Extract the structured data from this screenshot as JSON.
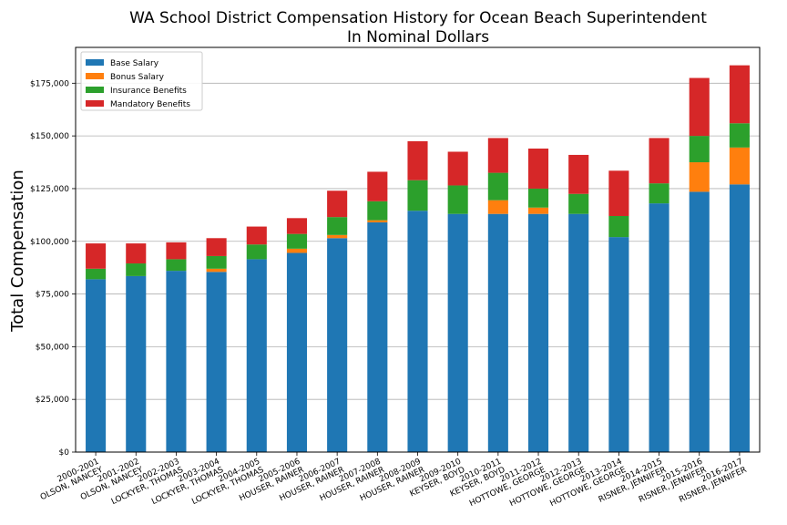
{
  "chart_data": {
    "type": "bar",
    "stacked": true,
    "title": "WA School District Compensation History for Ocean Beach Superintendent",
    "subtitle": "In Nominal Dollars",
    "xlabel": "",
    "ylabel": "Total Compensation",
    "ylim": [
      0,
      192000
    ],
    "yticks": [
      0,
      25000,
      50000,
      75000,
      100000,
      125000,
      150000,
      175000
    ],
    "ytick_labels": [
      "$0",
      "$25,000",
      "$50,000",
      "$75,000",
      "$100,000",
      "$125,000",
      "$150,000",
      "$175,000"
    ],
    "grid": "horizontal",
    "legend_position": "top-left",
    "categories": [
      [
        "2000-2001",
        "OLSON, NANCEY"
      ],
      [
        "2001-2002",
        "OLSON, NANCEY"
      ],
      [
        "2002-2003",
        "LOCKYER, THOMAS"
      ],
      [
        "2003-2004",
        "LOCKYER, THOMAS"
      ],
      [
        "2004-2005",
        "LOCKYER, THOMAS"
      ],
      [
        "2005-2006",
        "HOUSER, RAINER"
      ],
      [
        "2006-2007",
        "HOUSER, RAINER"
      ],
      [
        "2007-2008",
        "HOUSER, RAINER"
      ],
      [
        "2008-2009",
        "HOUSER, RAINER"
      ],
      [
        "2009-2010",
        "KEYSER, BOYD"
      ],
      [
        "2010-2011",
        "KEYSER, BOYD"
      ],
      [
        "2011-2012",
        "HOTTOWE, GEORGE"
      ],
      [
        "2012-2013",
        "HOTTOWE, GEORGE"
      ],
      [
        "2013-2014",
        "HOTTOWE, GEORGE"
      ],
      [
        "2014-2015",
        "RISNER, JENNIFER"
      ],
      [
        "2015-2016",
        "RISNER, JENNIFER"
      ],
      [
        "2016-2017",
        "RISNER, JENNIFER"
      ]
    ],
    "series": [
      {
        "name": "Base Salary",
        "color": "#1f77b4",
        "values": [
          82000,
          83500,
          86000,
          85500,
          91500,
          94500,
          101500,
          109000,
          114500,
          113000,
          113000,
          113000,
          113000,
          102000,
          118000,
          123500,
          127000
        ]
      },
      {
        "name": "Bonus Salary",
        "color": "#ff7f0e",
        "values": [
          0,
          0,
          0,
          1500,
          0,
          2000,
          1500,
          1000,
          0,
          0,
          6500,
          3000,
          0,
          0,
          0,
          14000,
          17500
        ]
      },
      {
        "name": "Insurance Benefits",
        "color": "#2ca02c",
        "values": [
          5000,
          6000,
          5500,
          6000,
          7000,
          7000,
          8500,
          9000,
          14500,
          13500,
          13000,
          9000,
          9500,
          10000,
          9500,
          12500,
          11500
        ]
      },
      {
        "name": "Mandatory Benefits",
        "color": "#d62728",
        "values": [
          12000,
          9500,
          8000,
          8500,
          8500,
          7500,
          12500,
          14000,
          18500,
          16000,
          16500,
          19000,
          18500,
          21500,
          21500,
          27500,
          27500
        ]
      }
    ]
  }
}
